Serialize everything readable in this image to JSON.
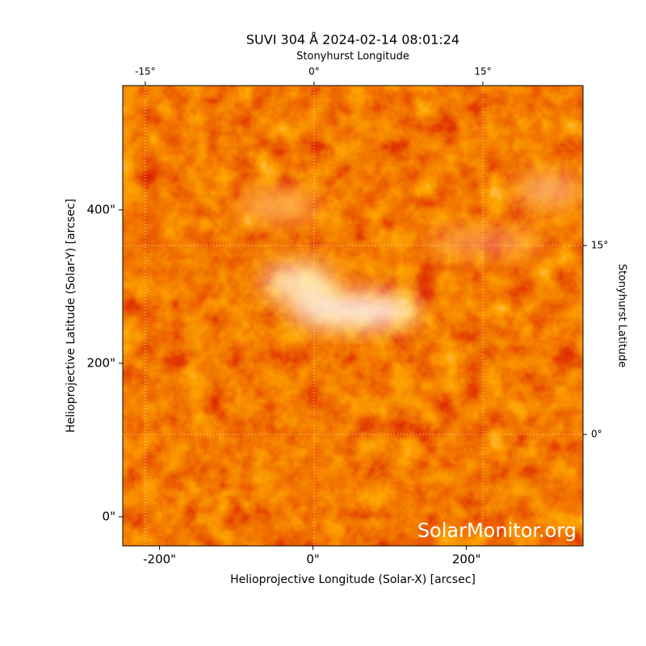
{
  "chart_data": {
    "type": "image",
    "title": "SUVI 304 Å 2024-02-14 08:01:24",
    "x_label": "Helioprojective Longitude (Solar-X) [arcsec]",
    "y_label": "Helioprojective Latitude (Solar-Y) [arcsec]",
    "x2_label": "Stonyhurst Longitude",
    "y2_label": "Stonyhurst Latitude",
    "watermark": "SolarMonitor.org",
    "xlim": [
      -248,
      352
    ],
    "xticks": [
      {
        "value": -200,
        "label": "-200\""
      },
      {
        "value": 0,
        "label": "0\""
      },
      {
        "value": 200,
        "label": "200\""
      }
    ],
    "ylim": [
      -38,
      562
    ],
    "yticks": [
      {
        "value": 0,
        "label": "0\""
      },
      {
        "value": 200,
        "label": "200\""
      },
      {
        "value": 400,
        "label": "400\""
      }
    ],
    "x2lim": [
      -17.0,
      23.9
    ],
    "x2ticks": [
      {
        "value": -15,
        "label": "-15°"
      },
      {
        "value": 0,
        "label": "0°"
      },
      {
        "value": 15,
        "label": "15°"
      }
    ],
    "y2lim": [
      -8.85,
      27.7
    ],
    "y2ticks": [
      {
        "value": 0,
        "label": "0°"
      },
      {
        "value": 15,
        "label": "15°"
      }
    ],
    "grid": true
  }
}
